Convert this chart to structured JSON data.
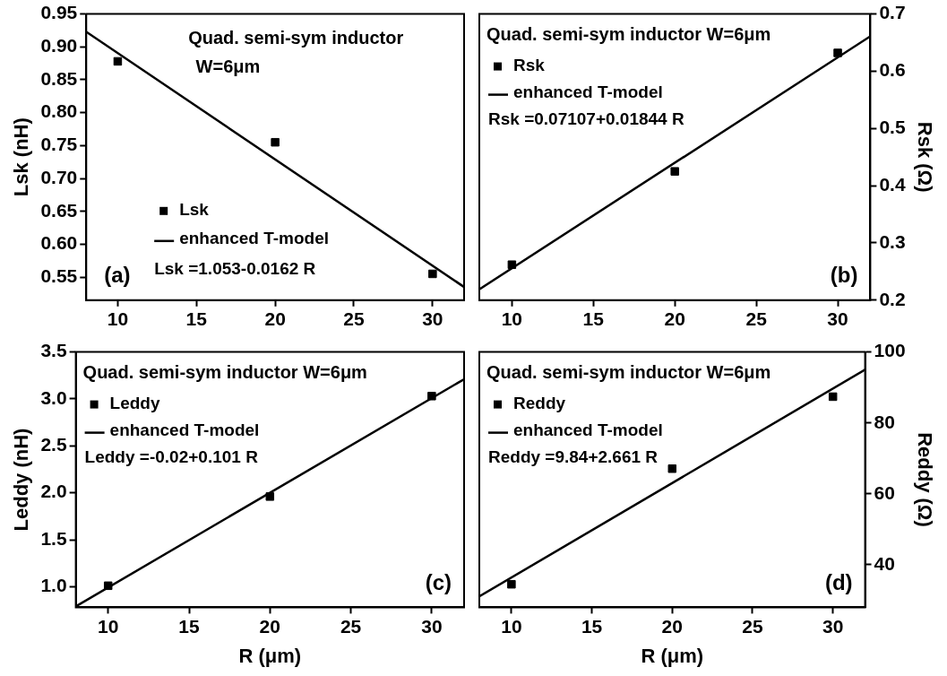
{
  "chart_data": [
    {
      "type": "scatter",
      "xlim": [
        8,
        32
      ],
      "xticks": [
        10,
        15,
        20,
        25,
        30
      ],
      "ylim": [
        0.515,
        0.95
      ],
      "yticks": [
        0.55,
        {
          "value": 0.6,
          "label": "0.60"
        },
        0.65,
        {
          "value": 0.7,
          "label": "0.70"
        },
        0.75,
        {
          "value": 0.8,
          "label": "0.80"
        },
        0.85,
        {
          "value": 0.9,
          "label": "0.90"
        },
        0.95
      ],
      "ylabel": "Lsk (nH)",
      "legend": "bottom",
      "line_style": "solid",
      "annotations": [
        "Quad. semi-sym inductor W=6μm",
        "Lsk =1.053-0.0162 R",
        "(a)"
      ],
      "series": [
        {
          "name": "Lsk",
          "type": "scatter",
          "marker": "square",
          "color": "#000000",
          "x": [
            10,
            20,
            30
          ],
          "values": [
            0.878,
            0.755,
            0.555
          ]
        },
        {
          "name": "enhanced T-model",
          "type": "line",
          "marker": "none",
          "color": "#000000",
          "x": [
            8,
            32
          ],
          "values": [
            0.923,
            0.535
          ]
        }
      ]
    },
    {
      "type": "scatter",
      "xlim": [
        8,
        32
      ],
      "xticks": [
        10,
        15,
        20,
        25,
        30
      ],
      "y2lim": [
        0.2,
        0.7
      ],
      "y2ticks": [
        0.2,
        0.3,
        0.4,
        0.5,
        0.6,
        0.7
      ],
      "y2label": "Rsk (Ω)",
      "legend": "top left",
      "line_style": "solid",
      "annotations": [
        "Quad. semi-sym inductor W=6μm",
        "Rsk =0.07107+0.01844 R",
        "(b)"
      ],
      "series": [
        {
          "name": "Rsk",
          "type": "scatter",
          "marker": "square",
          "color": "#000000",
          "axis": "y2",
          "x": [
            10,
            20,
            30
          ],
          "values": [
            0.262,
            0.425,
            0.632
          ]
        },
        {
          "name": "enhanced T-model",
          "type": "line",
          "marker": "none",
          "color": "#000000",
          "axis": "y2",
          "x": [
            8,
            32
          ],
          "values": [
            0.219,
            0.661
          ]
        }
      ]
    },
    {
      "type": "scatter",
      "xlim": [
        8,
        32
      ],
      "xticks": [
        10,
        15,
        20,
        25,
        30
      ],
      "ylim": [
        0.78,
        3.5
      ],
      "yticks": [
        {
          "value": 1,
          "label": "1.0"
        },
        1.5,
        {
          "value": 2,
          "label": "2.0"
        },
        2.5,
        {
          "value": 3,
          "label": "3.0"
        },
        3.5
      ],
      "xlabel": "R (μm)",
      "ylabel": "Leddy (nH)",
      "legend": "top left",
      "line_style": "solid",
      "annotations": [
        "Quad. semi-sym inductor W=6μm",
        "Leddy =-0.02+0.101 R",
        "(c)"
      ],
      "series": [
        {
          "name": "Leddy",
          "type": "scatter",
          "marker": "square",
          "color": "#000000",
          "x": [
            10,
            20,
            30
          ],
          "values": [
            1.01,
            1.96,
            3.03
          ]
        },
        {
          "name": "enhanced T-model",
          "type": "line",
          "marker": "none",
          "color": "#000000",
          "x": [
            8,
            32
          ],
          "values": [
            0.79,
            3.21
          ]
        }
      ]
    },
    {
      "type": "scatter",
      "xlim": [
        8,
        32
      ],
      "xticks": [
        10,
        15,
        20,
        25,
        30
      ],
      "y2lim": [
        28,
        100
      ],
      "y2ticks": [
        40,
        60,
        80,
        100
      ],
      "xlabel": "R (μm)",
      "y2label": "Reddy (Ω)",
      "legend": "top left",
      "line_style": "solid",
      "annotations": [
        "Quad. semi-sym inductor W=6μm",
        "Reddy =9.84+2.661 R",
        "(d)"
      ],
      "series": [
        {
          "name": "Reddy",
          "type": "scatter",
          "marker": "square",
          "color": "#000000",
          "axis": "y2",
          "x": [
            10,
            20,
            30
          ],
          "values": [
            34.5,
            67.1,
            87.4
          ]
        },
        {
          "name": "enhanced T-model",
          "type": "line",
          "marker": "none",
          "color": "#000000",
          "axis": "y2",
          "x": [
            8,
            32
          ],
          "values": [
            31.1,
            95.0
          ]
        }
      ]
    }
  ]
}
